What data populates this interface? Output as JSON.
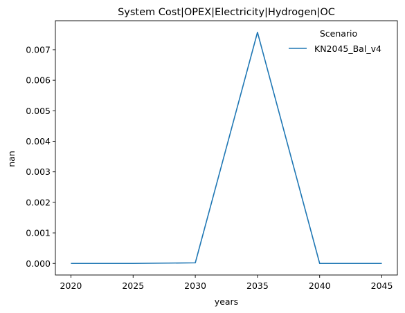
{
  "chart_data": {
    "type": "line",
    "title": "System Cost|OPEX|Electricity|Hydrogen|OC",
    "xlabel": "years",
    "ylabel": "nan",
    "x": [
      2020,
      2025,
      2030,
      2035,
      2040,
      2045
    ],
    "series": [
      {
        "name": "KN2045_Bal_v4",
        "color": "#1f77b4",
        "values": [
          0.0,
          0.0,
          2e-05,
          0.00757,
          0.0,
          0.0
        ]
      }
    ],
    "xlim": [
      2018.75,
      2046.25
    ],
    "ylim": [
      -0.000379,
      0.007949
    ],
    "xticks": [
      2020,
      2025,
      2030,
      2035,
      2040,
      2045
    ],
    "xtick_labels": [
      "2020",
      "2025",
      "2030",
      "2035",
      "2040",
      "2045"
    ],
    "yticks": [
      0,
      0.001,
      0.002,
      0.003,
      0.004,
      0.005,
      0.006,
      0.007
    ],
    "ytick_labels": [
      "0.000",
      "0.001",
      "0.002",
      "0.003",
      "0.004",
      "0.005",
      "0.006",
      "0.007"
    ],
    "grid": false,
    "legend": {
      "title": "Scenario",
      "placement": "upper-right"
    }
  }
}
